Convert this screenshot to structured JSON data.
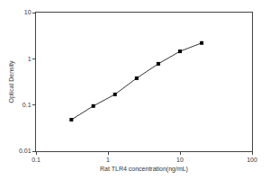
{
  "chart_data": {
    "type": "scatter",
    "x_label": "Rat TLR4 concentration(ng/mL)",
    "y_label": "Optical Density",
    "x": [
      0.31,
      0.625,
      1.25,
      2.5,
      5,
      10,
      20
    ],
    "values": [
      0.048,
      0.095,
      0.17,
      0.38,
      0.78,
      1.45,
      2.2
    ],
    "xlim": [
      0.1,
      100
    ],
    "xticks": [
      0.1,
      1,
      10,
      100
    ],
    "ylim": [
      0.01,
      10
    ],
    "yticks": [
      0.01,
      0.1,
      1,
      10
    ],
    "log": true,
    "grid": false,
    "color": "#000000",
    "marker": "square",
    "line_style": "solid"
  }
}
